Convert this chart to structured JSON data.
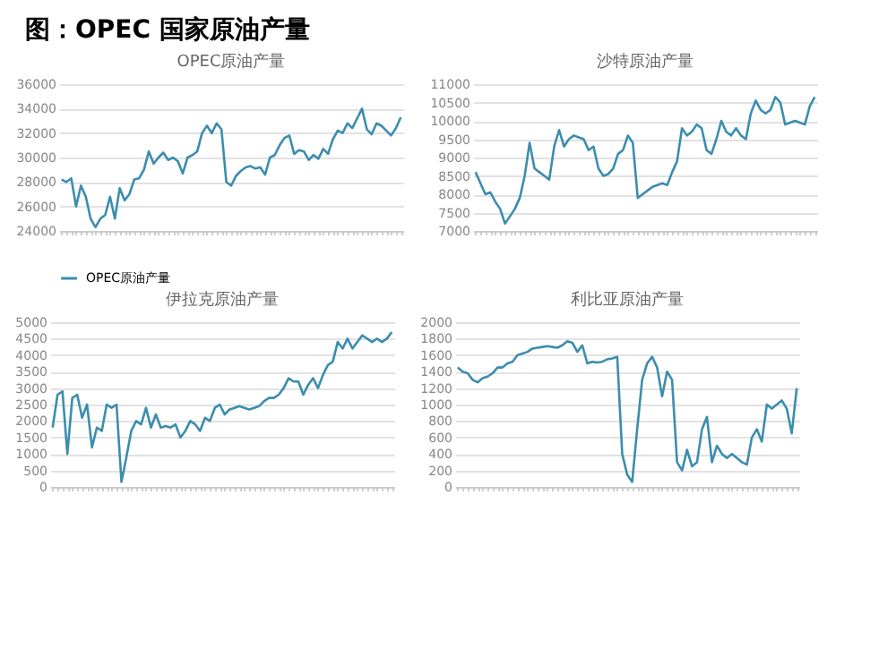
{
  "chart_data": [
    {
      "type": "line",
      "title": "OPEC原油产量",
      "annotations": [
        "图：OPEC 国家原油产量"
      ],
      "categories": [
        null,
        null,
        null,
        null,
        null,
        null,
        null,
        null,
        null,
        null,
        null,
        null,
        null,
        null,
        null,
        null,
        null,
        null,
        null,
        null,
        null,
        null,
        null,
        null,
        null,
        null,
        null,
        null,
        null,
        null,
        null,
        null,
        null,
        null,
        null,
        null,
        null,
        null,
        null,
        null,
        null,
        null,
        null,
        null,
        null,
        null,
        null,
        null,
        null,
        null,
        null,
        null,
        null,
        null,
        null,
        null,
        null,
        null,
        null,
        null,
        null,
        null,
        null,
        null,
        null,
        null,
        null,
        null,
        null,
        null,
        null
      ],
      "tick_labels": "y",
      "series": [
        {
          "name": "OPEC原油产量",
          "color": "#3c8dae",
          "values": [
            28200,
            28000,
            28300,
            26000,
            27700,
            26800,
            25000,
            24300,
            25000,
            25300,
            26800,
            25000,
            27500,
            26500,
            27000,
            28200,
            28300,
            29000,
            30500,
            29500,
            30000,
            30400,
            29800,
            30000,
            29700,
            28700,
            30000,
            30200,
            30500,
            32000,
            32600,
            32000,
            32800,
            32300,
            28000,
            27700,
            28500,
            28900,
            29200,
            29300,
            29100,
            29200,
            28600,
            30000,
            30200,
            31000,
            31600,
            31800,
            30300,
            30600,
            30500,
            29800,
            30200,
            29900,
            30700,
            30300,
            31500,
            32200,
            32000,
            32800,
            32400,
            33200,
            34000,
            32300,
            31900,
            32800,
            32600,
            32200,
            31800,
            32400,
            33300
          ]
        }
      ],
      "ylim": [
        24000,
        36000
      ],
      "yticks": [
        24000,
        26000,
        28000,
        30000,
        32000,
        34000,
        36000
      ],
      "grid": "y",
      "legend": "bottom"
    },
    {
      "type": "line",
      "title": "沙特原油产量",
      "categories": [
        null,
        null,
        null,
        null,
        null,
        null,
        null,
        null,
        null,
        null,
        null,
        null,
        null,
        null,
        null,
        null,
        null,
        null,
        null,
        null,
        null,
        null,
        null,
        null,
        null,
        null,
        null,
        null,
        null,
        null,
        null,
        null,
        null,
        null,
        null,
        null,
        null,
        null,
        null,
        null,
        null,
        null,
        null,
        null,
        null,
        null,
        null,
        null,
        null,
        null,
        null,
        null,
        null,
        null,
        null,
        null,
        null,
        null,
        null,
        null,
        null,
        null,
        null,
        null,
        null,
        null,
        null,
        null,
        null,
        null
      ],
      "tick_labels": "y",
      "series": [
        {
          "color": "#3c8dae",
          "values": [
            8600,
            8300,
            8000,
            8050,
            7800,
            7600,
            7200,
            7400,
            7600,
            7900,
            8500,
            9400,
            8700,
            8600,
            8500,
            8400,
            9300,
            9750,
            9300,
            9500,
            9600,
            9550,
            9500,
            9200,
            9300,
            8700,
            8500,
            8550,
            8700,
            9100,
            9200,
            9600,
            9400,
            7900,
            8000,
            8100,
            8200,
            8250,
            8300,
            8250,
            8600,
            8900,
            9800,
            9600,
            9700,
            9900,
            9800,
            9200,
            9100,
            9500,
            10000,
            9700,
            9600,
            9800,
            9600,
            9500,
            10200,
            10550,
            10300,
            10200,
            10300,
            10650,
            10500,
            9900,
            9950,
            10000,
            9950,
            9900,
            10400,
            10650
          ]
        }
      ],
      "ylim": [
        7000,
        11000
      ],
      "yticks": [
        7000,
        7500,
        8000,
        8500,
        9000,
        9500,
        10000,
        10500,
        11000
      ],
      "grid": "y"
    },
    {
      "type": "line",
      "title": "伊拉克原油产量",
      "categories": [
        null,
        null,
        null,
        null,
        null,
        null,
        null,
        null,
        null,
        null,
        null,
        null,
        null,
        null,
        null,
        null,
        null,
        null,
        null,
        null,
        null,
        null,
        null,
        null,
        null,
        null,
        null,
        null,
        null,
        null,
        null,
        null,
        null,
        null,
        null,
        null,
        null,
        null,
        null,
        null,
        null,
        null,
        null,
        null,
        null,
        null,
        null,
        null,
        null,
        null,
        null,
        null,
        null,
        null,
        null,
        null,
        null,
        null,
        null,
        null,
        null,
        null,
        null,
        null,
        null,
        null,
        null,
        null,
        null,
        null
      ],
      "tick_labels": "y",
      "series": [
        {
          "color": "#3c8dae",
          "values": [
            1800,
            2800,
            2900,
            1000,
            2700,
            2800,
            2100,
            2500,
            1200,
            1800,
            1700,
            2500,
            2400,
            2500,
            150,
            900,
            1700,
            2000,
            1900,
            2400,
            1800,
            2200,
            1800,
            1850,
            1800,
            1900,
            1500,
            1700,
            2000,
            1900,
            1700,
            2100,
            2000,
            2400,
            2500,
            2200,
            2350,
            2400,
            2450,
            2400,
            2350,
            2400,
            2450,
            2600,
            2700,
            2700,
            2800,
            3000,
            3300,
            3200,
            3200,
            2800,
            3100,
            3300,
            3000,
            3400,
            3700,
            3800,
            4400,
            4200,
            4500,
            4200,
            4400,
            4600,
            4500,
            4400,
            4500,
            4400,
            4500,
            4700
          ]
        }
      ],
      "ylim": [
        0,
        5000
      ],
      "yticks": [
        0,
        500,
        1000,
        1500,
        2000,
        2500,
        3000,
        3500,
        4000,
        4500,
        5000
      ],
      "grid": "y"
    },
    {
      "type": "line",
      "title": "利比亚原油产量",
      "categories": [
        null,
        null,
        null,
        null,
        null,
        null,
        null,
        null,
        null,
        null,
        null,
        null,
        null,
        null,
        null,
        null,
        null,
        null,
        null,
        null,
        null,
        null,
        null,
        null,
        null,
        null,
        null,
        null,
        null,
        null,
        null,
        null,
        null,
        null,
        null,
        null,
        null,
        null,
        null,
        null,
        null,
        null,
        null,
        null,
        null,
        null,
        null,
        null,
        null,
        null,
        null,
        null,
        null,
        null,
        null,
        null,
        null,
        null,
        null,
        null,
        null,
        null,
        null,
        null,
        null,
        null,
        null,
        null,
        null
      ],
      "tick_labels": "y",
      "series": [
        {
          "color": "#3c8dae",
          "values": [
            1450,
            1400,
            1380,
            1300,
            1270,
            1320,
            1340,
            1380,
            1450,
            1450,
            1500,
            1520,
            1600,
            1620,
            1640,
            1680,
            1690,
            1700,
            1710,
            1700,
            1690,
            1720,
            1770,
            1750,
            1640,
            1720,
            1500,
            1520,
            1510,
            1520,
            1550,
            1560,
            1580,
            400,
            150,
            60,
            700,
            1300,
            1500,
            1580,
            1450,
            1100,
            1400,
            1300,
            300,
            200,
            450,
            250,
            300,
            700,
            850,
            300,
            500,
            400,
            350,
            400,
            350,
            300,
            270,
            600,
            700,
            550,
            1000,
            950,
            1000,
            1050,
            950,
            650,
            1200
          ]
        }
      ],
      "ylim": [
        0,
        2000
      ],
      "yticks": [
        0,
        200,
        400,
        600,
        800,
        1000,
        1200,
        1400,
        1600,
        1800,
        2000
      ],
      "grid": "y"
    }
  ]
}
